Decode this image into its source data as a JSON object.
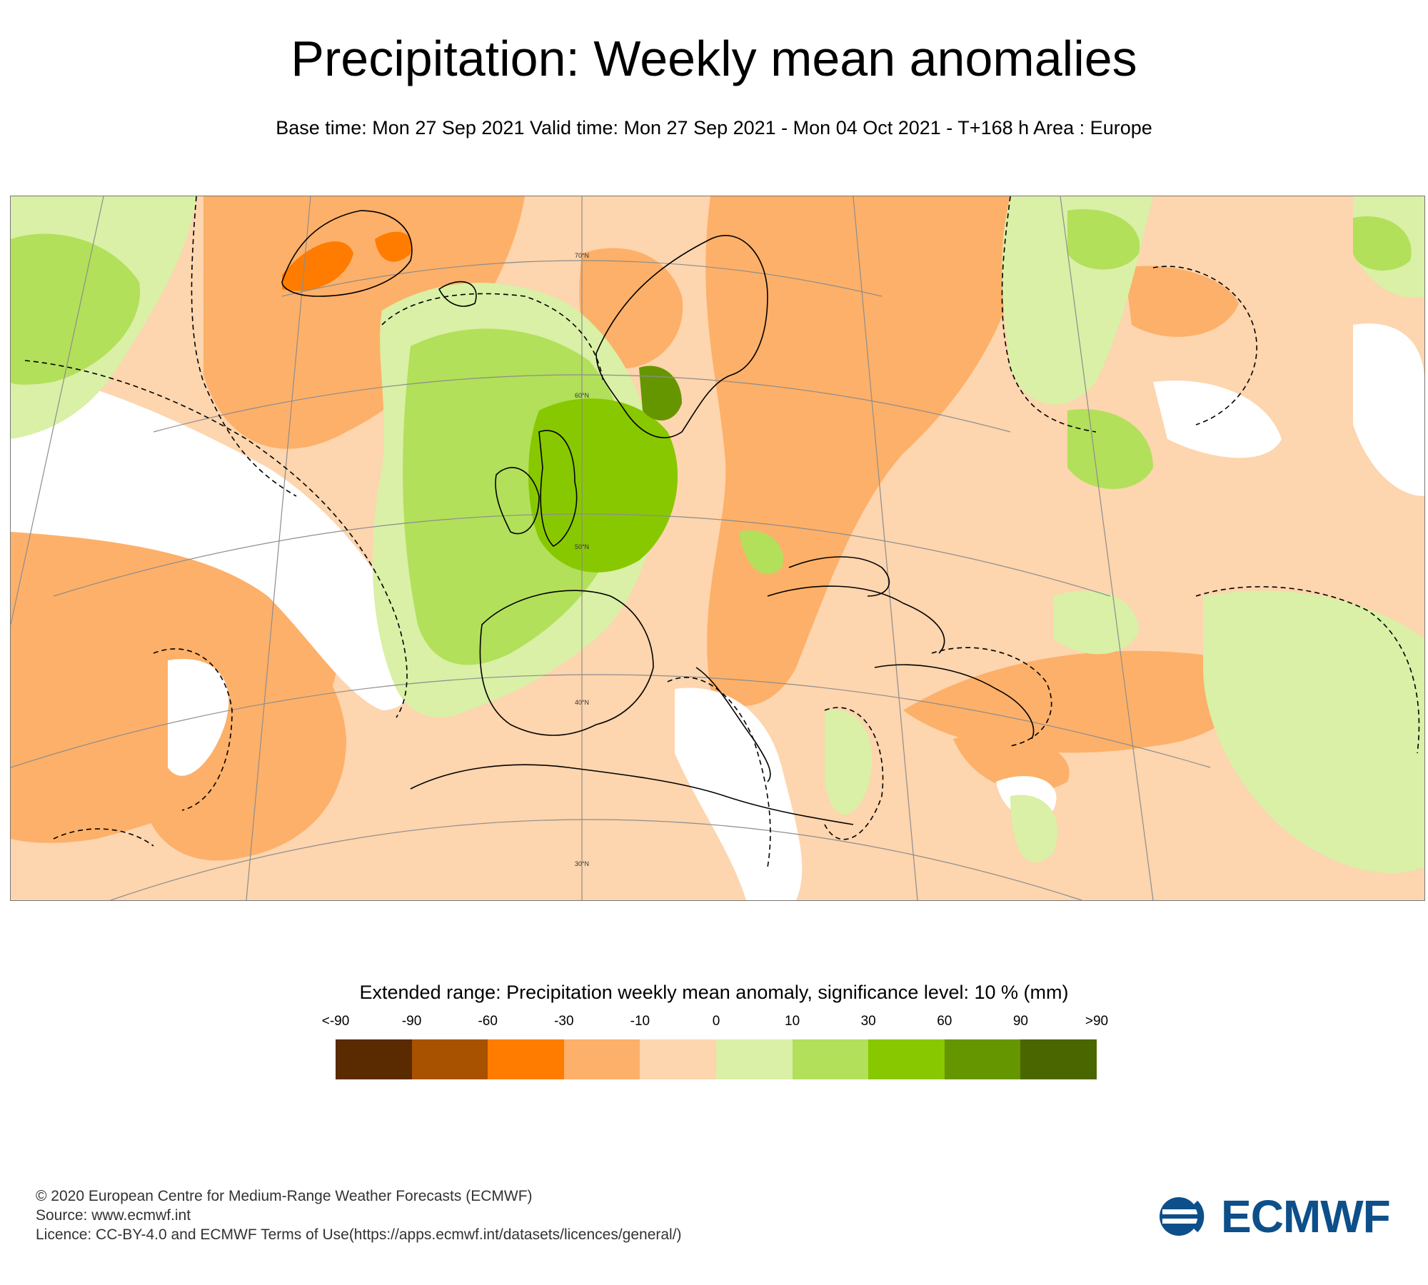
{
  "header": {
    "title": "Precipitation: Weekly mean anomalies",
    "subtitle": "Base time: Mon 27 Sep 2021 Valid time: Mon 27 Sep 2021 - Mon 04 Oct 2021 - T+168 h Area : Europe"
  },
  "map": {
    "area": "Europe",
    "latitude_labels": [
      "70°N",
      "60°N",
      "50°N",
      "40°N",
      "30°N"
    ],
    "anomaly_colors": {
      "lt_-90": "#5a2a00",
      "-90_-60": "#a85200",
      "-60_-30": "#ff7c00",
      "-30_-10": "#fdb069",
      "-10_0": "#fdd5ae",
      "0_10": "#d9f0a6",
      "10_30": "#b2e05a",
      "30_60": "#88c800",
      "60_90": "#659600",
      "gt_90": "#4a6600",
      "not_significant": "#ffffff"
    }
  },
  "legend": {
    "title": "Extended range: Precipitation weekly mean anomaly, significance level: 10 % (mm)",
    "ticks": [
      "<-90",
      "-90",
      "-60",
      "-30",
      "-10",
      "0",
      "10",
      "30",
      "60",
      "90",
      ">90"
    ],
    "colors": [
      "#5a2a00",
      "#a85200",
      "#ff7c00",
      "#fdb069",
      "#fdd5ae",
      "#d9f0a6",
      "#b2e05a",
      "#88c800",
      "#659600",
      "#4a6600"
    ]
  },
  "footer": {
    "copyright": "© 2020 European Centre for Medium-Range Weather Forecasts (ECMWF)",
    "source": "Source: www.ecmwf.int",
    "licence": "Licence: CC-BY-4.0 and ECMWF Terms of Use(https://apps.ecmwf.int/datasets/licences/general/)"
  },
  "logo": {
    "text": "ECMWF",
    "color": "#0d4f8a"
  }
}
